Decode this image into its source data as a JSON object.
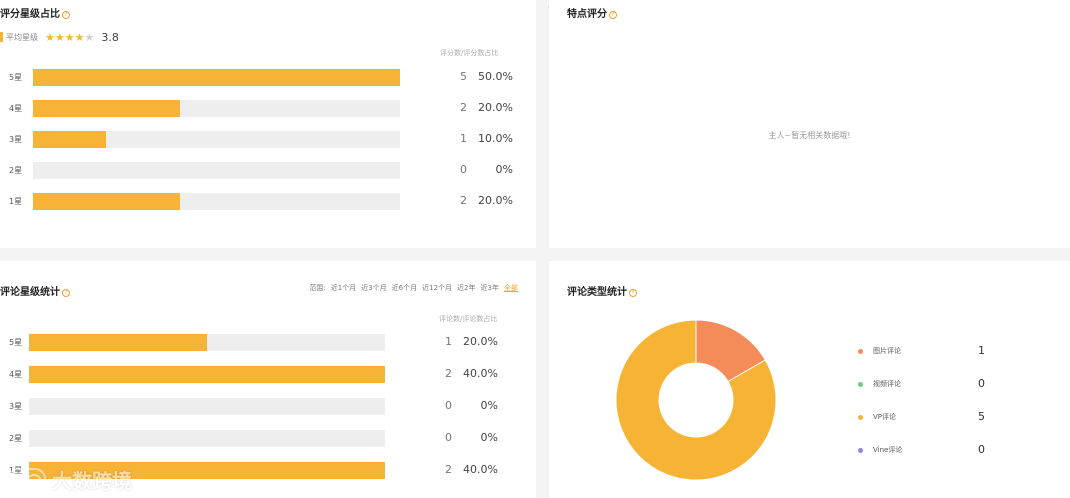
{
  "colors": {
    "accent": "#f7b335",
    "track": "#eeeeee",
    "image_review": "#f68b5a",
    "video_review": "#72c97a",
    "vp_review": "#f7b335",
    "vine_review": "#8a87e6"
  },
  "star_share": {
    "title": "评分星级占比",
    "avg_label": "平均星级",
    "avg_value": "3.8",
    "avg_stars": 3.8,
    "col_head": "评分数/评分数占比",
    "rows": [
      {
        "label": "5星",
        "count": "5",
        "pct": "50.0%",
        "fraction": 1.0
      },
      {
        "label": "4星",
        "count": "2",
        "pct": "20.0%",
        "fraction": 0.4
      },
      {
        "label": "3星",
        "count": "1",
        "pct": "10.0%",
        "fraction": 0.2
      },
      {
        "label": "2星",
        "count": "0",
        "pct": "0%",
        "fraction": 0.0
      },
      {
        "label": "1星",
        "count": "2",
        "pct": "20.0%",
        "fraction": 0.4
      }
    ]
  },
  "feature_rating": {
    "title": "特点评分",
    "empty_msg": "主人~暂无相关数据哦!"
  },
  "review_star_stats": {
    "title": "评论星级统计",
    "filter_label": "范围:",
    "filters": [
      "近1个月",
      "近3个月",
      "近6个月",
      "近12个月",
      "近2年",
      "近3年",
      "全部"
    ],
    "active_filter": "全部",
    "col_head": "评论数/评论数占比",
    "rows": [
      {
        "label": "5星",
        "count": "1",
        "pct": "20.0%",
        "fraction": 0.5
      },
      {
        "label": "4星",
        "count": "2",
        "pct": "40.0%",
        "fraction": 1.0
      },
      {
        "label": "3星",
        "count": "0",
        "pct": "0%",
        "fraction": 0.0
      },
      {
        "label": "2星",
        "count": "0",
        "pct": "0%",
        "fraction": 0.0
      },
      {
        "label": "1星",
        "count": "2",
        "pct": "40.0%",
        "fraction": 1.0
      }
    ]
  },
  "review_type_stats": {
    "title": "评论类型统计",
    "items": [
      {
        "label": "图片评论",
        "value": "1",
        "color": "#f68b5a"
      },
      {
        "label": "视频评论",
        "value": "0",
        "color": "#72c97a"
      },
      {
        "label": "VP评论",
        "value": "5",
        "color": "#f7b335"
      },
      {
        "label": "Vine评论",
        "value": "0",
        "color": "#8a87e6"
      }
    ]
  },
  "watermark": {
    "text": "大数跨境",
    "logo_icon": "infinity-logo-icon"
  }
}
